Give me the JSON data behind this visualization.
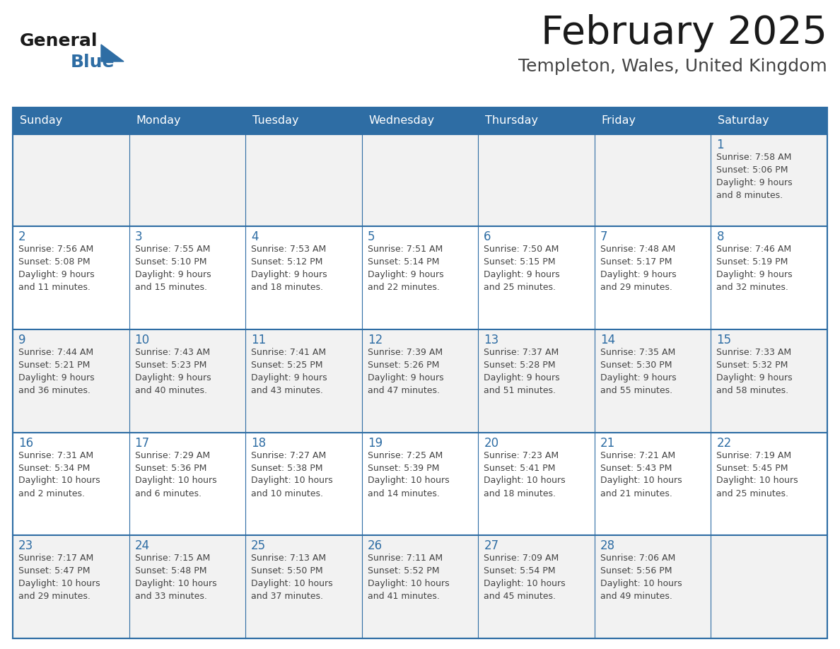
{
  "title": "February 2025",
  "subtitle": "Templeton, Wales, United Kingdom",
  "days_of_week": [
    "Sunday",
    "Monday",
    "Tuesday",
    "Wednesday",
    "Thursday",
    "Friday",
    "Saturday"
  ],
  "header_bg": "#2E6DA4",
  "header_text": "#FFFFFF",
  "cell_bg_odd": "#F2F2F2",
  "cell_bg_even": "#FFFFFF",
  "border_color": "#2E6DA4",
  "day_number_color": "#2E6DA4",
  "cell_text_color": "#444444",
  "title_color": "#1a1a1a",
  "subtitle_color": "#444444",
  "logo_general_color": "#1a1a1a",
  "logo_blue_color": "#2E6DA4",
  "calendar_data": [
    [
      null,
      null,
      null,
      null,
      null,
      null,
      {
        "day": 1,
        "sunrise": "7:58 AM",
        "sunset": "5:06 PM",
        "daylight": "9 hours and 8 minutes."
      }
    ],
    [
      {
        "day": 2,
        "sunrise": "7:56 AM",
        "sunset": "5:08 PM",
        "daylight": "9 hours and 11 minutes."
      },
      {
        "day": 3,
        "sunrise": "7:55 AM",
        "sunset": "5:10 PM",
        "daylight": "9 hours and 15 minutes."
      },
      {
        "day": 4,
        "sunrise": "7:53 AM",
        "sunset": "5:12 PM",
        "daylight": "9 hours and 18 minutes."
      },
      {
        "day": 5,
        "sunrise": "7:51 AM",
        "sunset": "5:14 PM",
        "daylight": "9 hours and 22 minutes."
      },
      {
        "day": 6,
        "sunrise": "7:50 AM",
        "sunset": "5:15 PM",
        "daylight": "9 hours and 25 minutes."
      },
      {
        "day": 7,
        "sunrise": "7:48 AM",
        "sunset": "5:17 PM",
        "daylight": "9 hours and 29 minutes."
      },
      {
        "day": 8,
        "sunrise": "7:46 AM",
        "sunset": "5:19 PM",
        "daylight": "9 hours and 32 minutes."
      }
    ],
    [
      {
        "day": 9,
        "sunrise": "7:44 AM",
        "sunset": "5:21 PM",
        "daylight": "9 hours and 36 minutes."
      },
      {
        "day": 10,
        "sunrise": "7:43 AM",
        "sunset": "5:23 PM",
        "daylight": "9 hours and 40 minutes."
      },
      {
        "day": 11,
        "sunrise": "7:41 AM",
        "sunset": "5:25 PM",
        "daylight": "9 hours and 43 minutes."
      },
      {
        "day": 12,
        "sunrise": "7:39 AM",
        "sunset": "5:26 PM",
        "daylight": "9 hours and 47 minutes."
      },
      {
        "day": 13,
        "sunrise": "7:37 AM",
        "sunset": "5:28 PM",
        "daylight": "9 hours and 51 minutes."
      },
      {
        "day": 14,
        "sunrise": "7:35 AM",
        "sunset": "5:30 PM",
        "daylight": "9 hours and 55 minutes."
      },
      {
        "day": 15,
        "sunrise": "7:33 AM",
        "sunset": "5:32 PM",
        "daylight": "9 hours and 58 minutes."
      }
    ],
    [
      {
        "day": 16,
        "sunrise": "7:31 AM",
        "sunset": "5:34 PM",
        "daylight": "10 hours and 2 minutes."
      },
      {
        "day": 17,
        "sunrise": "7:29 AM",
        "sunset": "5:36 PM",
        "daylight": "10 hours and 6 minutes."
      },
      {
        "day": 18,
        "sunrise": "7:27 AM",
        "sunset": "5:38 PM",
        "daylight": "10 hours and 10 minutes."
      },
      {
        "day": 19,
        "sunrise": "7:25 AM",
        "sunset": "5:39 PM",
        "daylight": "10 hours and 14 minutes."
      },
      {
        "day": 20,
        "sunrise": "7:23 AM",
        "sunset": "5:41 PM",
        "daylight": "10 hours and 18 minutes."
      },
      {
        "day": 21,
        "sunrise": "7:21 AM",
        "sunset": "5:43 PM",
        "daylight": "10 hours and 21 minutes."
      },
      {
        "day": 22,
        "sunrise": "7:19 AM",
        "sunset": "5:45 PM",
        "daylight": "10 hours and 25 minutes."
      }
    ],
    [
      {
        "day": 23,
        "sunrise": "7:17 AM",
        "sunset": "5:47 PM",
        "daylight": "10 hours and 29 minutes."
      },
      {
        "day": 24,
        "sunrise": "7:15 AM",
        "sunset": "5:48 PM",
        "daylight": "10 hours and 33 minutes."
      },
      {
        "day": 25,
        "sunrise": "7:13 AM",
        "sunset": "5:50 PM",
        "daylight": "10 hours and 37 minutes."
      },
      {
        "day": 26,
        "sunrise": "7:11 AM",
        "sunset": "5:52 PM",
        "daylight": "10 hours and 41 minutes."
      },
      {
        "day": 27,
        "sunrise": "7:09 AM",
        "sunset": "5:54 PM",
        "daylight": "10 hours and 45 minutes."
      },
      {
        "day": 28,
        "sunrise": "7:06 AM",
        "sunset": "5:56 PM",
        "daylight": "10 hours and 49 minutes."
      },
      null
    ]
  ]
}
